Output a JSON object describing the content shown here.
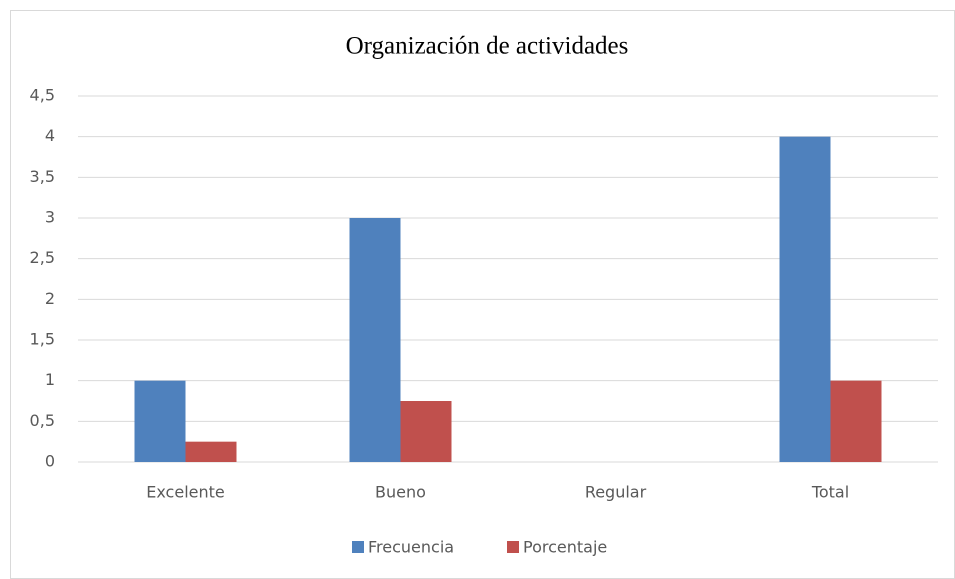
{
  "chart_data": {
    "type": "bar",
    "title": "Organización de actividades",
    "categories": [
      "Excelente",
      "Bueno",
      "Regular",
      "Total"
    ],
    "series": [
      {
        "name": "Frecuencia",
        "color": "#4f81bd",
        "values": [
          1,
          3,
          0,
          4
        ]
      },
      {
        "name": "Porcentaje",
        "color": "#c0504d",
        "values": [
          0.25,
          0.75,
          0,
          1
        ]
      }
    ],
    "ylim": [
      0,
      4.5
    ],
    "yticks": [
      0,
      {
        "value": 0.5,
        "label": "0,5"
      },
      1,
      {
        "value": 1.5,
        "label": "1,5"
      },
      2,
      {
        "value": 2.5,
        "label": "2,5"
      },
      3,
      {
        "value": 3.5,
        "label": "3,5"
      },
      4,
      {
        "value": 4.5,
        "label": "4,5"
      }
    ],
    "grid": true,
    "legend": "bottom"
  }
}
